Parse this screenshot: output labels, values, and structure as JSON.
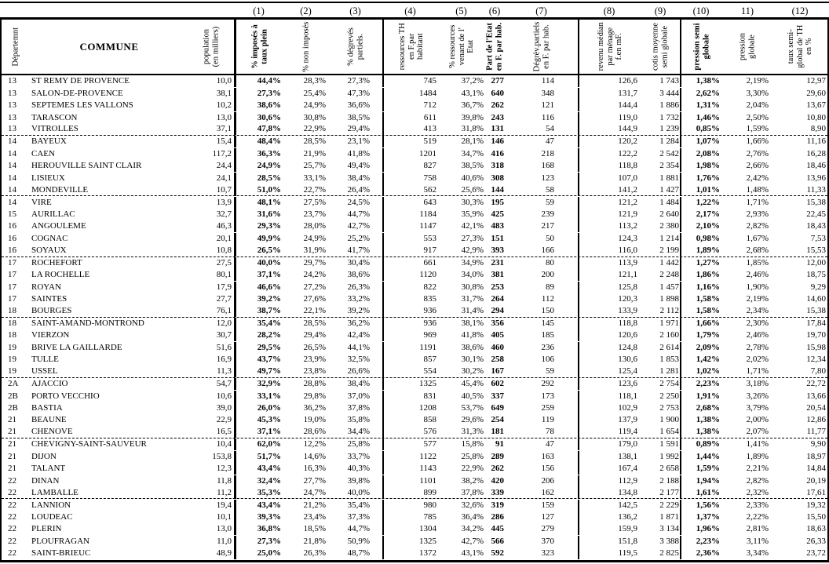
{
  "header": {
    "departement": "Départemnt",
    "commune": "COMMUNE",
    "population": "population\n(en milliers)",
    "columns": [
      {
        "num": "(1)",
        "label": "% imposés à\ntaux plein",
        "bold": true
      },
      {
        "num": "(2)",
        "label": "% non imposés",
        "bold": false
      },
      {
        "num": "(3)",
        "label": "% dégrevés\npartiels.",
        "bold": false
      },
      {
        "num": "(4)",
        "label": "ressources TH\nen F.par\nhabitant",
        "bold": false
      },
      {
        "num": "(5)",
        "label": "% ressources\nvenant de l'\nEtat",
        "bold": false
      },
      {
        "num": "(6)",
        "label": "Part de l'Etat\nen F. par hab.",
        "bold": true
      },
      {
        "num": "(7)",
        "label": "Dégrèv.partiels\nen F. par hab.",
        "bold": false
      },
      {
        "num": "(8)",
        "label": "revenu médian\npar ménage\nf.en mF.",
        "bold": false
      },
      {
        "num": "(9)",
        "label": "cotis moyenne\nsemi globale",
        "bold": false
      },
      {
        "num": "(10)",
        "label": "pression semi\nglobale",
        "bold": true
      },
      {
        "num": "11)",
        "label": "pression\nglobale",
        "bold": false
      },
      {
        "num": "(12)",
        "label": "taux semi-\nglobal de TH\nen %",
        "bold": false
      }
    ]
  },
  "rows": [
    [
      "13",
      "ST REMY DE PROVENCE",
      "10,0",
      "44,4%",
      "28,3%",
      "27,3%",
      "745",
      "37,2%",
      "277",
      "114",
      "126,6",
      "1 743",
      "1,38%",
      "2,19%",
      "12,97"
    ],
    [
      "13",
      "SALON-DE-PROVENCE",
      "38,1",
      "27,3%",
      "25,4%",
      "47,3%",
      "1484",
      "43,1%",
      "640",
      "348",
      "131,7",
      "3 444",
      "2,62%",
      "3,30%",
      "29,60"
    ],
    [
      "13",
      "SEPTEMES LES VALLONS",
      "10,2",
      "38,6%",
      "24,9%",
      "36,6%",
      "712",
      "36,7%",
      "262",
      "121",
      "144,4",
      "1 886",
      "1,31%",
      "2,04%",
      "13,67"
    ],
    [
      "13",
      "TARASCON",
      "13,0",
      "30,6%",
      "30,8%",
      "38,5%",
      "611",
      "39,8%",
      "243",
      "116",
      "119,0",
      "1 732",
      "1,46%",
      "2,50%",
      "10,80"
    ],
    [
      "13",
      "VITROLLES",
      "37,1",
      "47,8%",
      "22,9%",
      "29,4%",
      "413",
      "31,8%",
      "131",
      "54",
      "144,9",
      "1 239",
      "0,85%",
      "1,59%",
      "8,90"
    ],
    [
      "14",
      "BAYEUX",
      "15,4",
      "48,4%",
      "28,5%",
      "23,1%",
      "519",
      "28,1%",
      "146",
      "47",
      "120,2",
      "1 284",
      "1,07%",
      "1,66%",
      "11,16"
    ],
    [
      "14",
      "CAEN",
      "117,2",
      "36,3%",
      "21,9%",
      "41,8%",
      "1201",
      "34,7%",
      "416",
      "218",
      "122,2",
      "2 542",
      "2,08%",
      "2,76%",
      "16,28"
    ],
    [
      "14",
      "HEROUVILLE SAINT CLAIR",
      "24,4",
      "24,9%",
      "25,7%",
      "49,4%",
      "827",
      "38,5%",
      "318",
      "168",
      "118,8",
      "2 354",
      "1,98%",
      "2,66%",
      "18,46"
    ],
    [
      "14",
      "LISIEUX",
      "24,1",
      "28,5%",
      "33,1%",
      "38,4%",
      "758",
      "40,6%",
      "308",
      "123",
      "107,0",
      "1 881",
      "1,76%",
      "2,42%",
      "13,96"
    ],
    [
      "14",
      "MONDEVILLE",
      "10,7",
      "51,0%",
      "22,7%",
      "26,4%",
      "562",
      "25,6%",
      "144",
      "58",
      "141,2",
      "1 427",
      "1,01%",
      "1,48%",
      "11,33"
    ],
    [
      "14",
      "VIRE",
      "13,9",
      "48,1%",
      "27,5%",
      "24,5%",
      "643",
      "30,3%",
      "195",
      "59",
      "121,2",
      "1 484",
      "1,22%",
      "1,71%",
      "15,38"
    ],
    [
      "15",
      "AURILLAC",
      "32,7",
      "31,6%",
      "23,7%",
      "44,7%",
      "1184",
      "35,9%",
      "425",
      "239",
      "121,9",
      "2 640",
      "2,17%",
      "2,93%",
      "22,45"
    ],
    [
      "16",
      "ANGOULEME",
      "46,3",
      "29,3%",
      "28,0%",
      "42,7%",
      "1147",
      "42,1%",
      "483",
      "217",
      "113,2",
      "2 380",
      "2,10%",
      "2,82%",
      "18,43"
    ],
    [
      "16",
      "COGNAC",
      "20,1",
      "49,9%",
      "24,9%",
      "25,2%",
      "553",
      "27,3%",
      "151",
      "50",
      "124,3",
      "1 214",
      "0,98%",
      "1,67%",
      "7,53"
    ],
    [
      "16",
      "SOYAUX",
      "10,8",
      "26,5%",
      "31,9%",
      "41,7%",
      "917",
      "42,9%",
      "393",
      "166",
      "116,0",
      "2 199",
      "1,89%",
      "2,68%",
      "15,53"
    ],
    [
      "17",
      "ROCHEFORT",
      "27,5",
      "40,0%",
      "29,7%",
      "30,4%",
      "661",
      "34,9%",
      "231",
      "80",
      "113,9",
      "1 442",
      "1,27%",
      "1,85%",
      "12,00"
    ],
    [
      "17",
      "LA ROCHELLE",
      "80,1",
      "37,1%",
      "24,2%",
      "38,6%",
      "1120",
      "34,0%",
      "381",
      "200",
      "121,1",
      "2 248",
      "1,86%",
      "2,46%",
      "18,75"
    ],
    [
      "17",
      "ROYAN",
      "17,9",
      "46,6%",
      "27,2%",
      "26,3%",
      "822",
      "30,8%",
      "253",
      "89",
      "125,8",
      "1 457",
      "1,16%",
      "1,90%",
      "9,29"
    ],
    [
      "17",
      "SAINTES",
      "27,7",
      "39,2%",
      "27,6%",
      "33,2%",
      "835",
      "31,7%",
      "264",
      "112",
      "120,3",
      "1 898",
      "1,58%",
      "2,19%",
      "14,60"
    ],
    [
      "18",
      "BOURGES",
      "76,1",
      "38,7%",
      "22,1%",
      "39,2%",
      "936",
      "31,4%",
      "294",
      "150",
      "133,9",
      "2 112",
      "1,58%",
      "2,34%",
      "15,38"
    ],
    [
      "18",
      "SAINT-AMAND-MONTROND",
      "12,0",
      "35,4%",
      "28,5%",
      "36,2%",
      "936",
      "38,1%",
      "356",
      "145",
      "118,8",
      "1 971",
      "1,66%",
      "2,30%",
      "17,84"
    ],
    [
      "18",
      "VIERZON",
      "30,7",
      "28,2%",
      "29,4%",
      "42,4%",
      "969",
      "41,8%",
      "405",
      "185",
      "120,6",
      "2 160",
      "1,79%",
      "2,46%",
      "19,70"
    ],
    [
      "19",
      "BRIVE LA GAILLARDE",
      "51,6",
      "29,5%",
      "26,5%",
      "44,1%",
      "1191",
      "38,6%",
      "460",
      "236",
      "124,8",
      "2 614",
      "2,09%",
      "2,78%",
      "15,98"
    ],
    [
      "19",
      "TULLE",
      "16,9",
      "43,7%",
      "23,9%",
      "32,5%",
      "857",
      "30,1%",
      "258",
      "106",
      "130,6",
      "1 853",
      "1,42%",
      "2,02%",
      "12,34"
    ],
    [
      "19",
      "USSEL",
      "11,3",
      "49,7%",
      "23,8%",
      "26,6%",
      "554",
      "30,2%",
      "167",
      "59",
      "125,4",
      "1 281",
      "1,02%",
      "1,71%",
      "7,80"
    ],
    [
      "2A",
      "AJACCIO",
      "54,7",
      "32,9%",
      "28,8%",
      "38,4%",
      "1325",
      "45,4%",
      "602",
      "292",
      "123,6",
      "2 754",
      "2,23%",
      "3,18%",
      "22,72"
    ],
    [
      "2B",
      "PORTO VECCHIO",
      "10,6",
      "33,1%",
      "29,8%",
      "37,0%",
      "831",
      "40,5%",
      "337",
      "173",
      "118,1",
      "2 250",
      "1,91%",
      "3,26%",
      "13,66"
    ],
    [
      "2B",
      "BASTIA",
      "39,0",
      "26,0%",
      "36,2%",
      "37,8%",
      "1208",
      "53,7%",
      "649",
      "259",
      "102,9",
      "2 753",
      "2,68%",
      "3,79%",
      "20,54"
    ],
    [
      "21",
      "BEAUNE",
      "22,9",
      "45,3%",
      "19,0%",
      "35,8%",
      "858",
      "29,6%",
      "254",
      "119",
      "137,9",
      "1 900",
      "1,38%",
      "2,00%",
      "12,86"
    ],
    [
      "21",
      "CHENOVE",
      "16,5",
      "37,1%",
      "28,6%",
      "34,4%",
      "576",
      "31,3%",
      "181",
      "78",
      "119,4",
      "1 654",
      "1,38%",
      "2,07%",
      "11,77"
    ],
    [
      "21",
      "CHEVIGNY-SAINT-SAUVEUR",
      "10,4",
      "62,0%",
      "12,2%",
      "25,8%",
      "577",
      "15,8%",
      "91",
      "47",
      "179,0",
      "1 591",
      "0,89%",
      "1,41%",
      "9,90"
    ],
    [
      "21",
      "DIJON",
      "153,8",
      "51,7%",
      "14,6%",
      "33,7%",
      "1122",
      "25,8%",
      "289",
      "163",
      "138,1",
      "1 992",
      "1,44%",
      "1,89%",
      "18,97"
    ],
    [
      "21",
      "TALANT",
      "12,3",
      "43,4%",
      "16,3%",
      "40,3%",
      "1143",
      "22,9%",
      "262",
      "156",
      "167,4",
      "2 658",
      "1,59%",
      "2,21%",
      "14,84"
    ],
    [
      "22",
      "DINAN",
      "11,8",
      "32,4%",
      "27,7%",
      "39,8%",
      "1101",
      "38,2%",
      "420",
      "206",
      "112,9",
      "2 188",
      "1,94%",
      "2,82%",
      "20,19"
    ],
    [
      "22",
      "LAMBALLE",
      "11,2",
      "35,3%",
      "24,7%",
      "40,0%",
      "899",
      "37,8%",
      "339",
      "162",
      "134,8",
      "2 177",
      "1,61%",
      "2,32%",
      "17,61"
    ],
    [
      "22",
      "LANNION",
      "19,4",
      "43,4%",
      "21,2%",
      "35,4%",
      "980",
      "32,6%",
      "319",
      "159",
      "142,5",
      "2 229",
      "1,56%",
      "2,33%",
      "19,32"
    ],
    [
      "22",
      "LOUDEAC",
      "10,1",
      "39,3%",
      "23,4%",
      "37,3%",
      "785",
      "36,4%",
      "286",
      "127",
      "136,2",
      "1 871",
      "1,37%",
      "2,22%",
      "15,50"
    ],
    [
      "22",
      "PLERIN",
      "13,0",
      "36,8%",
      "18,5%",
      "44,7%",
      "1304",
      "34,2%",
      "445",
      "279",
      "159,9",
      "3 134",
      "1,96%",
      "2,81%",
      "18,63"
    ],
    [
      "22",
      "PLOUFRAGAN",
      "11,0",
      "27,3%",
      "21,8%",
      "50,9%",
      "1325",
      "42,7%",
      "566",
      "370",
      "151,8",
      "3 388",
      "2,23%",
      "3,11%",
      "26,33"
    ],
    [
      "22",
      "SAINT-BRIEUC",
      "48,9",
      "25,0%",
      "26,3%",
      "48,7%",
      "1372",
      "43,1%",
      "592",
      "323",
      "119,5",
      "2 825",
      "2,36%",
      "3,34%",
      "23,72"
    ]
  ]
}
